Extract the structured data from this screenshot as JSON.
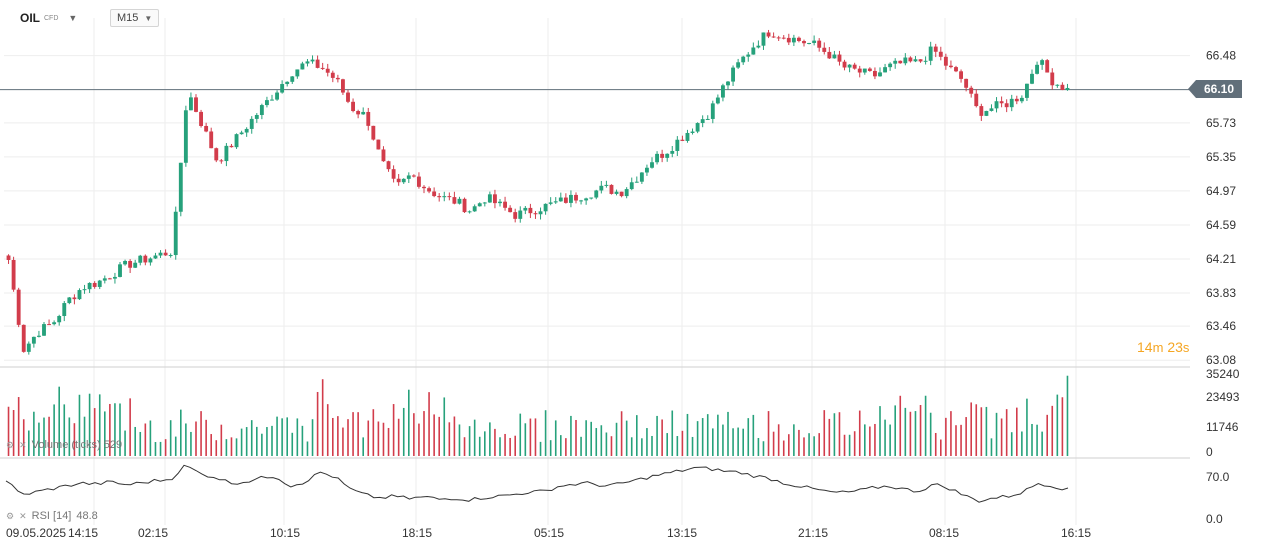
{
  "header": {
    "symbol": "OIL",
    "symbol_type": "CFD",
    "timeframe": "M15"
  },
  "price_panel": {
    "last_price_label": "66.10",
    "countdown": {
      "minutes": "14",
      "m": "m",
      "seconds": "23",
      "s": "s"
    }
  },
  "volume_panel": {
    "label": "Volume (ticks) 529"
  },
  "rsi_panel": {
    "label": "RSI [14]",
    "value": "48.8"
  },
  "colors": {
    "up": "#26a17b",
    "down": "#d23c4b",
    "rsi_line": "#333333",
    "grid": "#eeeeee"
  },
  "chart_data": {
    "type": "candlestick",
    "price_axis": {
      "min": 63.08,
      "max": 66.48,
      "ticks": [
        "66.48",
        "65.73",
        "65.35",
        "64.97",
        "64.59",
        "64.21",
        "63.83",
        "63.46",
        "63.08"
      ]
    },
    "last_price": 66.1,
    "volume_axis": {
      "ticks": [
        "35240",
        "23493",
        "11746",
        "0"
      ],
      "max": 35240
    },
    "rsi_axis": {
      "ticks": [
        "70.0",
        "0.0"
      ]
    },
    "time_labels": [
      "09.05.2025",
      "14:15",
      "02:15",
      "10:15",
      "18:15",
      "05:15",
      "13:15",
      "21:15",
      "08:15",
      "16:15"
    ],
    "close_path": [
      64.2,
      63.2,
      63.4,
      63.5,
      63.75,
      63.9,
      63.95,
      64.05,
      64.15,
      64.2,
      64.25,
      64.3,
      66.1,
      65.7,
      65.3,
      65.5,
      65.7,
      65.9,
      66.1,
      66.3,
      66.4,
      66.35,
      66.2,
      65.9,
      65.8,
      65.3,
      65.0,
      65.15,
      65.0,
      64.9,
      64.85,
      64.75,
      64.9,
      64.8,
      64.7,
      64.75,
      64.8,
      64.85,
      64.9,
      64.95,
      65.0,
      64.95,
      65.1,
      65.3,
      65.4,
      65.55,
      65.7,
      65.85,
      66.15,
      66.4,
      66.6,
      66.75,
      66.7,
      66.65,
      66.6,
      66.5,
      66.35,
      66.3,
      66.25,
      66.35,
      66.4,
      66.4,
      66.55,
      66.35,
      66.2,
      65.85,
      65.9,
      65.95,
      66.05,
      66.45,
      66.2,
      66.1
    ],
    "rsi_path": [
      65,
      40,
      45,
      50,
      55,
      60,
      58,
      62,
      57,
      60,
      64,
      66,
      90,
      75,
      70,
      60,
      62,
      68,
      72,
      55,
      62,
      78,
      70,
      50,
      40,
      35,
      38,
      34,
      37,
      33,
      35,
      32,
      36,
      38,
      41,
      45,
      46,
      55,
      58,
      60,
      55,
      58,
      64,
      70,
      75,
      80,
      85,
      84,
      80,
      78,
      72,
      68,
      60,
      55,
      50,
      45,
      44,
      47,
      52,
      55,
      50,
      46,
      58,
      52,
      40,
      30,
      35,
      38,
      45,
      60,
      55,
      48.8
    ]
  }
}
